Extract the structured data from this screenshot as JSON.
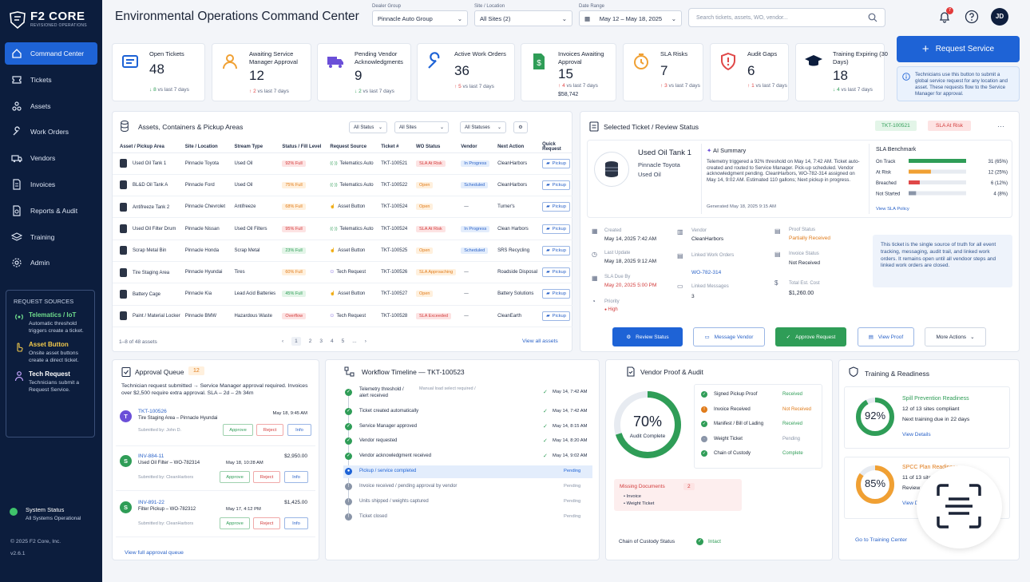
{
  "brand": {
    "name": "F2 CORE",
    "tagline": "REVISIONED OPERATIONS"
  },
  "nav": [
    {
      "label": "Command Center",
      "icon": "home-icon",
      "active": true
    },
    {
      "label": "Tickets",
      "icon": "ticket-icon"
    },
    {
      "label": "Assets",
      "icon": "assets-icon"
    },
    {
      "label": "Work Orders",
      "icon": "wrench-icon"
    },
    {
      "label": "Vendors",
      "icon": "truck-icon"
    },
    {
      "label": "Invoices",
      "icon": "invoice-icon"
    },
    {
      "label": "Reports & Audit",
      "icon": "report-icon"
    },
    {
      "label": "Training",
      "icon": "layers-icon"
    },
    {
      "label": "Admin",
      "icon": "gear-icon"
    }
  ],
  "sources": {
    "title": "REQUEST SOURCES",
    "items": [
      {
        "title": "Telematics / IoT",
        "desc": "Automatic threshold triggers create a ticket."
      },
      {
        "title": "Asset Button",
        "desc": "Onsite asset buttons create a direct ticket."
      },
      {
        "title": "Tech Request",
        "desc": "Technicians submit a Request Service."
      }
    ]
  },
  "system": {
    "title": "System Status",
    "status": "All Systems Operational"
  },
  "footer": {
    "copyright": "© 2025 F2 Core, Inc.",
    "version": "v2.6.1"
  },
  "header": {
    "title": "Environmental Operations Command Center",
    "dealer_label": "Dealer Group",
    "dealer_value": "Pinnacle Auto Group",
    "site_label": "Site / Location",
    "site_value": "All Sites (2)",
    "date_label": "Date Range",
    "date_value": "May 12 – May 18, 2025",
    "search_placeholder": "Search tickets, assets, WO, vendor...",
    "notif_count": "7",
    "user_initials": "JD"
  },
  "kpis": [
    {
      "label": "Open Tickets",
      "value": "48",
      "delta": "8",
      "trend": "down",
      "suffix": "vs last 7 days"
    },
    {
      "label": "Awaiting Service Manager Approval",
      "value": "12",
      "delta": "2",
      "trend": "up",
      "suffix": "vs last 7 days"
    },
    {
      "label": "Pending Vendor Acknowledgments",
      "value": "9",
      "delta": "2",
      "trend": "down",
      "suffix": "vs last 7 days"
    },
    {
      "label": "Active Work Orders",
      "value": "36",
      "delta": "5",
      "trend": "up",
      "suffix": "vs last 7 days"
    },
    {
      "label": "Invoices Awaiting Approval",
      "value": "15",
      "delta": "4",
      "trend": "up",
      "suffix": "vs last 7 days",
      "extra": "$58,742"
    },
    {
      "label": "SLA Risks",
      "value": "7",
      "delta": "3",
      "trend": "up",
      "suffix": "vs last 7 days"
    },
    {
      "label": "Audit Gaps",
      "value": "6",
      "delta": "1",
      "trend": "up",
      "suffix": "vs last 7 days"
    },
    {
      "label": "Training Expiring (30 Days)",
      "value": "18",
      "delta": "4",
      "trend": "down",
      "suffix": "vs last 7 days"
    }
  ],
  "request_service": {
    "label": "Request Service",
    "info": "Technicians use this button to submit a global service request for any location and asset. These requests flow to the Service Manager for approval."
  },
  "assets_panel": {
    "title": "Assets, Containers & Pickup Areas",
    "filters": [
      "All Status",
      "All Sites",
      "All Statuses"
    ],
    "columns": [
      "Asset / Pickup Area",
      "Site / Location",
      "Stream Type",
      "Status / Fill Level",
      "Request Source",
      "Ticket #",
      "WO Status",
      "Vendor",
      "Next Action",
      "Quick Request"
    ],
    "rows": [
      {
        "asset": "Used Oil Tank 1",
        "site": "Pinnacle Toyota",
        "stream": "Used Oil",
        "fill": "92% Full",
        "fill_c": "red",
        "source": "Telematics Auto",
        "ticket": "TKT-100521",
        "wo": "SLA At Risk",
        "wo_c": "red",
        "vendor": "In Progress",
        "vendor_c": "blue",
        "next": "CleanHarbors",
        "quick": "Pickup"
      },
      {
        "asset": "BL&D Oil Tank A",
        "site": "Pinnacle Ford",
        "stream": "Used Oil",
        "fill": "75% Full",
        "fill_c": "orange",
        "source": "Telematics Auto",
        "ticket": "TKT-100522",
        "wo": "Open",
        "wo_c": "orange",
        "vendor": "Scheduled",
        "vendor_c": "blue",
        "next": "CleanHarbors",
        "quick": "Pickup"
      },
      {
        "asset": "Antifreeze Tank 2",
        "site": "Pinnacle Chevrolet",
        "stream": "Antifreeze",
        "fill": "68% Full",
        "fill_c": "orange",
        "source": "Asset Button",
        "ticket": "TKT-100524",
        "wo": "Open",
        "wo_c": "orange",
        "vendor": "—",
        "vendor_c": "",
        "next": "Turner's",
        "quick": "Pickup"
      },
      {
        "asset": "Used Oil Filter Drum",
        "site": "Pinnacle Nissan",
        "stream": "Used Oil Filters",
        "fill": "95% Full",
        "fill_c": "red",
        "source": "Telematics Auto",
        "ticket": "TKT-100524",
        "wo": "SLA At Risk",
        "wo_c": "red",
        "vendor": "In Progress",
        "vendor_c": "blue",
        "next": "Clean Harbors",
        "quick": "Pickup"
      },
      {
        "asset": "Scrap Metal Bin",
        "site": "Pinnacle Honda",
        "stream": "Scrap Metal",
        "fill": "23% Full",
        "fill_c": "green",
        "source": "Asset Button",
        "ticket": "TKT-100525",
        "wo": "Open",
        "wo_c": "orange",
        "vendor": "Scheduled",
        "vendor_c": "blue",
        "next": "SRS Recycling",
        "quick": "Pickup"
      },
      {
        "asset": "Tire Staging Area",
        "site": "Pinnacle Hyundai",
        "stream": "Tires",
        "fill": "60% Full",
        "fill_c": "orange",
        "source": "Tech Request",
        "ticket": "TKT-100526",
        "wo": "SLA Approaching",
        "wo_c": "orange",
        "vendor": "—",
        "vendor_c": "",
        "next": "Roadside Disposal",
        "quick": "Pickup"
      },
      {
        "asset": "Battery Cage",
        "site": "Pinnacle Kia",
        "stream": "Lead Acid Batteries",
        "fill": "45% Full",
        "fill_c": "green",
        "source": "Asset Button",
        "ticket": "TKT-100527",
        "wo": "Open",
        "wo_c": "orange",
        "vendor": "—",
        "vendor_c": "",
        "next": "Battery Solutions",
        "quick": "Pickup"
      },
      {
        "asset": "Paint / Material Locker",
        "site": "Pinnacle BMW",
        "stream": "Hazardous Waste",
        "fill": "Overflow",
        "fill_c": "red",
        "source": "Tech Request",
        "ticket": "TKT-100528",
        "wo": "SLA Exceeded",
        "wo_c": "red",
        "vendor": "—",
        "vendor_c": "",
        "next": "CleanEarth",
        "quick": "Pickup"
      }
    ],
    "count": "1–8 of 48 assets",
    "pages": [
      "1",
      "2",
      "3",
      "4",
      "5",
      "..."
    ],
    "view_all": "View all assets"
  },
  "ticket_panel": {
    "title": "Selected Ticket / Review Status",
    "ticket_id": "TKT-100521",
    "status": "SLA At Risk",
    "asset_name": "Used Oil Tank 1",
    "asset_site": "Pinnacle Toyota",
    "asset_stream": "Used Oil",
    "ai_title": "AI Summary",
    "ai_text": "Telemetry triggered a 92% threshold on May 14, 7:42 AM. Ticket auto-created and routed to Service Manager. Pick-up scheduled. Vendor acknowledgment pending. CleanHarbors, WO-782-314 assigned on May 14, 9:02 AM. Estimated 110 gallons; Next pickup in progress.",
    "ai_generated": "Generated May 18, 2025 9:15 AM",
    "sla_title": "SLA Benchmark",
    "sla_link": "View SLA Policy",
    "created_label": "Created",
    "created": "May 14, 2025 7:42 AM",
    "updated_label": "Last Update",
    "updated": "May 18, 2025 9:12 AM",
    "due_label": "SLA Due By",
    "due": "May 20, 2025 5:00 PM",
    "priority_label": "Priority",
    "priority": "High",
    "vendor_label": "Vendor",
    "vendor": "CleanHarbors",
    "wo_label": "Linked Work Orders",
    "wo": "WO-782-314",
    "msg_label": "Linked Messages",
    "msg": "3",
    "proof_label": "Proof Status",
    "proof": "Partially Received",
    "invoice_label": "Invoice Status",
    "invoice": "Not Received",
    "cost_label": "Total Est. Cost",
    "cost": "$1,260.00",
    "note": "This ticket is the single source of truth for all event tracking, messaging, audit trail, and linked work orders. It remains open until all vendoor steps and linked work orders are closed.",
    "actions": [
      "Review Status",
      "Message Vendor",
      "Approve Request",
      "View Proof",
      "More Actions"
    ]
  },
  "chart_data": {
    "type": "bar",
    "title": "SLA Benchmark",
    "categories": [
      "On Track",
      "At Risk",
      "Breached",
      "Not Started"
    ],
    "values": [
      31,
      12,
      6,
      4
    ],
    "labels": [
      "31 (65%)",
      "12 (25%)",
      "6 (12%)",
      "4 (8%)"
    ],
    "colors": [
      "#2f9d57",
      "#f0a033",
      "#e04848",
      "#8a95a8"
    ]
  },
  "approval": {
    "title": "Approval Queue",
    "count": "12",
    "desc": "Technician request submitted → Service Manager approval required. Invoices over $2,500 require extra approval. SLA – 2d – 2h 34m",
    "items": [
      {
        "letter": "T",
        "id": "TKT-100526",
        "desc": "Tire Staging Area – Pinnacle Hyundai",
        "by": "Submitted by: John D.",
        "date": "May 18, 9:45 AM",
        "amount": ""
      },
      {
        "letter": "S",
        "id": "INV-884-11",
        "desc": "Used Oil Filter – WO-782314",
        "by": "Submitted by: CleanHarbors",
        "date": "May 18, 10:28 AM",
        "amount": "$2,950.00"
      },
      {
        "letter": "S",
        "id": "INV-891-22",
        "desc": "Filter Pickup – WO-782312",
        "by": "Submitted by: CleanHarbors",
        "date": "May 17, 4:12 PM",
        "amount": "$1,425.00"
      }
    ],
    "approve": "Approve",
    "reject": "Reject",
    "info": "Info",
    "link": "View full approval queue"
  },
  "timeline": {
    "title": "Workflow Timeline — TKT-100523",
    "steps": [
      {
        "label": "Telemetry threshold / alert received",
        "note": "Manual load select required /",
        "date": "May 14, 7:42 AM",
        "state": "done"
      },
      {
        "label": "Ticket created automatically",
        "note": "",
        "date": "May 14, 7:42 AM",
        "state": "done"
      },
      {
        "label": "Service Manager approved",
        "note": "",
        "date": "May 14, 8:15 AM",
        "state": "done"
      },
      {
        "label": "Vendor requested",
        "note": "",
        "date": "May 14, 8:20 AM",
        "state": "done"
      },
      {
        "label": "Vendor acknowledgment received",
        "note": "",
        "date": "May 14, 9:02 AM",
        "state": "done"
      },
      {
        "label": "Pickup / service completed",
        "note": "",
        "date": "Pending",
        "state": "current"
      },
      {
        "label": "Invoice received / pending approval by vendor",
        "note": "",
        "date": "Pending",
        "state": "pending"
      },
      {
        "label": "Units shipped / weights captured",
        "note": "",
        "date": "Pending",
        "state": "pending"
      },
      {
        "label": "Ticket closed",
        "note": "",
        "date": "Pending",
        "state": "pending"
      }
    ]
  },
  "vendor_proof": {
    "title": "Vendor Proof & Audit",
    "percent": 70,
    "percent_label": "70%",
    "caption": "Audit Complete",
    "items": [
      {
        "label": "Signed Pickup Proof",
        "status": "Received",
        "c": "green"
      },
      {
        "label": "Invoice Received",
        "status": "Not Received",
        "c": "orange"
      },
      {
        "label": "Manifest / Bill of Lading",
        "status": "Received",
        "c": "green"
      },
      {
        "label": "Weight Ticket",
        "status": "Pending",
        "c": "gray"
      },
      {
        "label": "Chain of Custody",
        "status": "Complete",
        "c": "green"
      }
    ],
    "missing_title": "Missing Documents",
    "missing_count": "2",
    "missing": [
      "Invoice",
      "Weight Ticket"
    ],
    "custody_label": "Chain of Custody Status",
    "custody_value": "Intact"
  },
  "training": {
    "title": "Training & Readiness",
    "items": [
      {
        "title": "Spill Prevention Readiness",
        "percent": 92,
        "percent_label": "92%",
        "line1": "12 of 13 sites compliant",
        "line2": "Next training due in 22 days",
        "link": "View Details",
        "color": "#2f9d57"
      },
      {
        "title": "SPCC Plan Readiness",
        "percent": 85,
        "percent_label": "85%",
        "line1": "11 of 13 sites",
        "line2": "Review c",
        "link": "View D",
        "color": "#f0a033"
      }
    ],
    "link": "Go to Training Center"
  }
}
